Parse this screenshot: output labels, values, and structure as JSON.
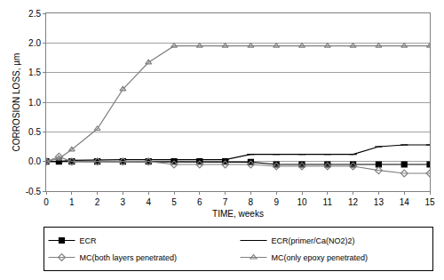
{
  "chart_data": {
    "type": "line",
    "x_label": "TIME, weeks",
    "y_label": "CORROSION LOSS, µm",
    "x": [
      0,
      0.5,
      1,
      2,
      3,
      4,
      5,
      6,
      7,
      8,
      9,
      10,
      11,
      12,
      13,
      14,
      15
    ],
    "series": [
      {
        "name": "ECR",
        "color": "#000000",
        "marker": "square",
        "values": [
          0,
          0,
          0,
          0,
          0,
          0,
          0,
          0,
          0,
          -0.01,
          -0.05,
          -0.05,
          -0.05,
          -0.05,
          -0.05,
          -0.05,
          -0.05
        ]
      },
      {
        "name": "ECR(primer/Ca(NO2)2)",
        "color": "#000000",
        "marker": "dash",
        "values": [
          0,
          0,
          0.02,
          0.03,
          0.03,
          0.03,
          0.03,
          0.03,
          0.03,
          0.12,
          0.12,
          0.12,
          0.12,
          0.12,
          0.25,
          0.28,
          0.28
        ]
      },
      {
        "name": "MC(both layers penetrated)",
        "color": "#808080",
        "marker": "diamond-open",
        "values": [
          0,
          0.08,
          0,
          0,
          0,
          0,
          -0.05,
          -0.05,
          -0.05,
          -0.05,
          -0.08,
          -0.08,
          -0.08,
          -0.08,
          -0.15,
          -0.2,
          -0.2
        ]
      },
      {
        "name": "MC(only epoxy penetrated)",
        "color": "#808080",
        "marker": "triangle-up-open",
        "values": [
          0,
          0.05,
          0.2,
          0.55,
          1.22,
          1.67,
          1.95,
          1.95,
          1.95,
          1.95,
          1.95,
          1.95,
          1.95,
          1.95,
          1.95,
          1.95,
          1.95
        ]
      }
    ],
    "xlim": [
      0,
      15
    ],
    "xticks": [
      0,
      1,
      2,
      3,
      4,
      5,
      6,
      7,
      8,
      9,
      10,
      11,
      12,
      13,
      14,
      15
    ],
    "ylim": [
      -0.5,
      2.5
    ],
    "yticks": [
      -0.5,
      {
        "value": 0,
        "label": "0.0"
      },
      0.5,
      {
        "value": 1,
        "label": "1.0"
      },
      1.5,
      {
        "value": 2,
        "label": "2.0"
      },
      2.5
    ],
    "grid": true,
    "legend": "bottom"
  }
}
